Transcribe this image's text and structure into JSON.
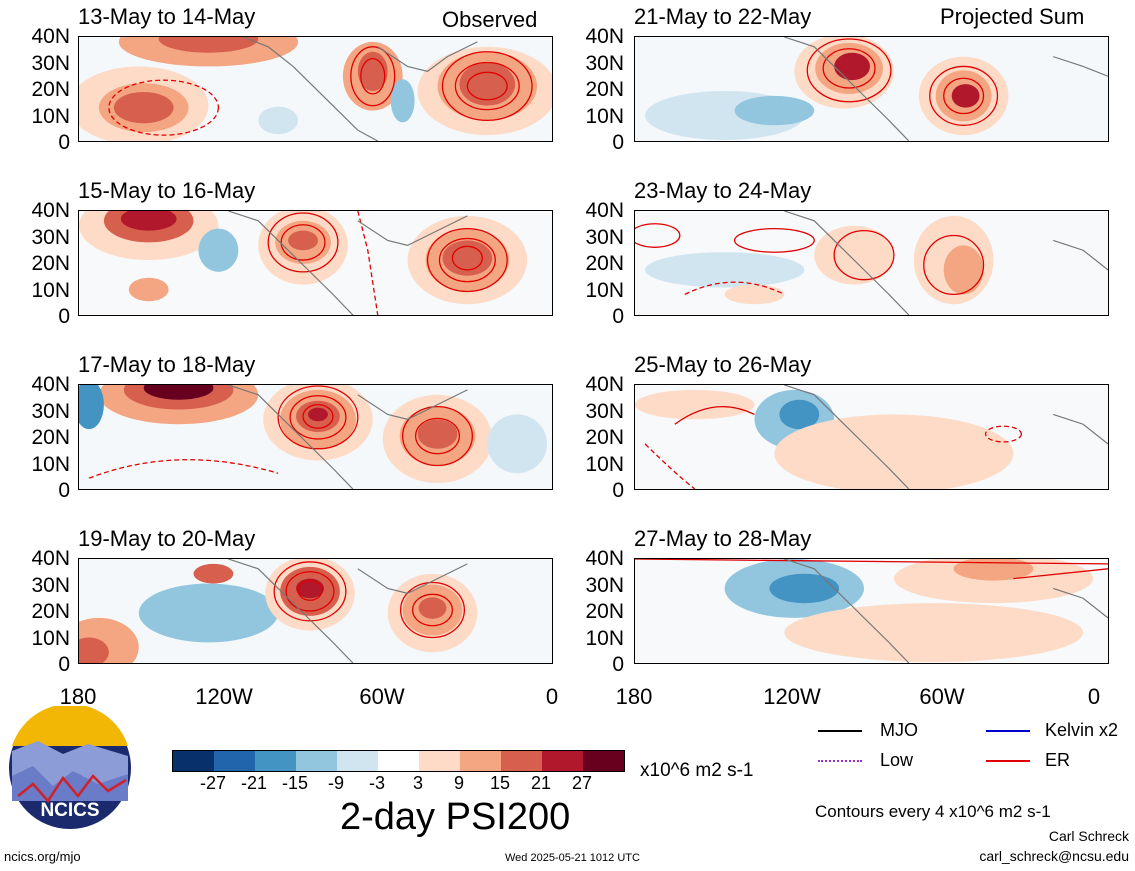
{
  "panels": {
    "observed_header": "Observed",
    "projected_header": "Projected Sum",
    "left": [
      "13-May to 14-May",
      "15-May to 16-May",
      "17-May to 18-May",
      "19-May to 20-May"
    ],
    "right": [
      "21-May to 22-May",
      "23-May to 24-May",
      "25-May to 26-May",
      "27-May to 28-May"
    ]
  },
  "axes": {
    "y_ticks": [
      "40N",
      "30N",
      "20N",
      "10N",
      "0"
    ],
    "x_ticks": [
      "180",
      "120W",
      "60W",
      "0"
    ]
  },
  "colorbar": {
    "labels": [
      "-27",
      "-21",
      "-15",
      "-9",
      "-3",
      "3",
      "9",
      "15",
      "21",
      "27"
    ],
    "units": "x10^6 m2 s-1",
    "colors": [
      "#08306b",
      "#2166ac",
      "#4393c3",
      "#92c5de",
      "#d1e5f0",
      "#ffffff",
      "#fddbc7",
      "#f4a582",
      "#d6604d",
      "#b2182b",
      "#67001f"
    ]
  },
  "title": "2-day PSI200",
  "legend": {
    "items": [
      {
        "label": "MJO",
        "color": "#000000",
        "style": "solid"
      },
      {
        "label": "Kelvin x2",
        "color": "#0000cc",
        "style": "solid"
      },
      {
        "label": "Low",
        "color": "#9933cc",
        "style": "dotted"
      },
      {
        "label": "ER",
        "color": "#e00000",
        "style": "solid"
      }
    ],
    "contour_note": "Contours every 4 x10^6 m2 s-1"
  },
  "credits": {
    "logo_text": "NCICS",
    "site": "ncics.org/mjo",
    "timestamp": "Wed 2025-05-21 1012 UTC",
    "author": "Carl Schreck",
    "email": "carl_schreck@ncsu.edu"
  }
}
